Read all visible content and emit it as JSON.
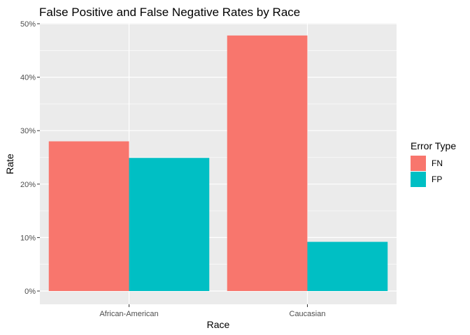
{
  "chart_data": {
    "type": "bar",
    "title": "False Positive and False Negative Rates by Race",
    "xlabel": "Race",
    "ylabel": "Rate",
    "categories": [
      "African-American",
      "Caucasian"
    ],
    "series": [
      {
        "name": "FN",
        "values": [
          0.28,
          0.478
        ],
        "color": "#F8766D"
      },
      {
        "name": "FP",
        "values": [
          0.249,
          0.092
        ],
        "color": "#00BFC4"
      }
    ],
    "ylim": [
      0,
      0.5
    ],
    "yticks": [
      0,
      0.1,
      0.2,
      0.3,
      0.4,
      0.5
    ],
    "ytick_labels": [
      "0%",
      "10%",
      "20%",
      "30%",
      "40%",
      "50%"
    ],
    "legend": {
      "title": "Error Type",
      "position": "right"
    },
    "grid": true,
    "panel_background": "#EBEBEB",
    "grid_color": "#FFFFFF"
  }
}
